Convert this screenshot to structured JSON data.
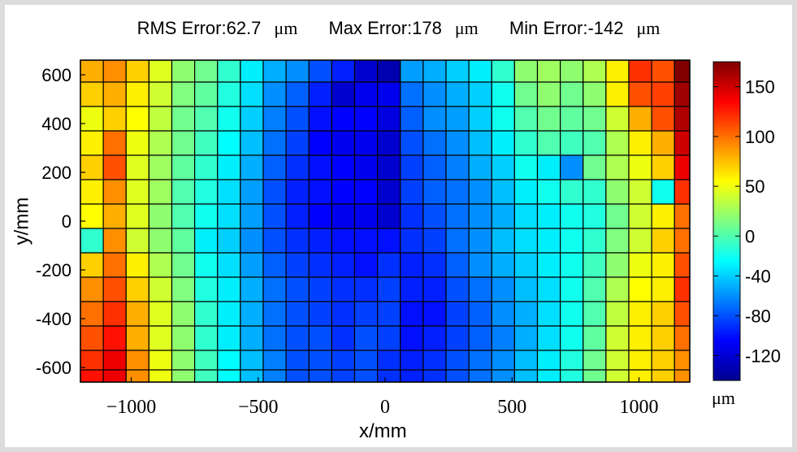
{
  "title": {
    "rms": "RMS Error:62.7",
    "max": "Max Error:178",
    "min": "Min Error:-142",
    "unit": "μm"
  },
  "chart_data": {
    "type": "heatmap",
    "xlabel": "x/mm",
    "ylabel": "y/mm",
    "colorbar_unit": "μm",
    "colormap": "jet",
    "clim": [
      -145,
      175
    ],
    "xlim": [
      -1200,
      1200
    ],
    "ylim": [
      -660,
      660
    ],
    "x_ticks": [
      -1000,
      -500,
      0,
      500,
      1000
    ],
    "x_tick_labels": [
      "−1000",
      "−500",
      "0",
      "500",
      "1000"
    ],
    "y_ticks": [
      600,
      400,
      200,
      0,
      -200,
      -400,
      -600
    ],
    "y_tick_labels": [
      "600",
      "400",
      "200",
      "0",
      "-200",
      "-400",
      "-600"
    ],
    "colorbar_ticks": [
      150,
      100,
      50,
      0,
      -40,
      -80,
      -120
    ],
    "x_centers": [
      -1155,
      -1065,
      -975,
      -885,
      -795,
      -705,
      -615,
      -525,
      -435,
      -345,
      -255,
      -165,
      -75,
      15,
      105,
      195,
      285,
      375,
      465,
      555,
      645,
      735,
      825,
      915,
      1005,
      1095,
      1185
    ],
    "y_centers": [
      620,
      520,
      420,
      320,
      220,
      120,
      20,
      -80,
      -180,
      -280,
      -380,
      -480,
      -580,
      -640
    ],
    "values": [
      [
        80,
        90,
        70,
        45,
        20,
        10,
        -10,
        -30,
        -50,
        -60,
        -80,
        -95,
        -120,
        -130,
        -55,
        -50,
        -40,
        -30,
        -10,
        20,
        25,
        20,
        30,
        60,
        120,
        110,
        175
      ],
      [
        70,
        80,
        60,
        40,
        15,
        5,
        -15,
        -35,
        -60,
        -75,
        -95,
        -120,
        -110,
        -110,
        -70,
        -60,
        -50,
        -40,
        -20,
        10,
        20,
        10,
        20,
        60,
        110,
        115,
        165
      ],
      [
        50,
        70,
        55,
        35,
        10,
        0,
        -20,
        -40,
        -65,
        -80,
        -100,
        -105,
        -105,
        -115,
        -75,
        -60,
        -55,
        -40,
        -20,
        0,
        10,
        5,
        10,
        40,
        80,
        110,
        160
      ],
      [
        60,
        100,
        50,
        30,
        10,
        -5,
        -25,
        -45,
        -70,
        -85,
        -105,
        -110,
        -110,
        -120,
        -80,
        -70,
        -60,
        -45,
        -30,
        -10,
        0,
        -5,
        0,
        30,
        60,
        80,
        150
      ],
      [
        70,
        110,
        45,
        25,
        5,
        -10,
        -30,
        -50,
        -75,
        -90,
        -100,
        -105,
        -110,
        -120,
        -85,
        -75,
        -65,
        -50,
        -40,
        -20,
        -30,
        -60,
        10,
        30,
        50,
        70,
        140
      ],
      [
        60,
        90,
        45,
        25,
        0,
        -15,
        -35,
        -55,
        -80,
        -95,
        -100,
        -105,
        -105,
        -120,
        -85,
        -75,
        -70,
        -60,
        -45,
        -30,
        -20,
        -10,
        -10,
        20,
        40,
        -20,
        120
      ],
      [
        55,
        80,
        45,
        20,
        0,
        -20,
        -35,
        -55,
        -80,
        -95,
        -105,
        -110,
        -110,
        -120,
        -90,
        -80,
        -70,
        -60,
        -50,
        -35,
        -30,
        -20,
        -15,
        10,
        40,
        60,
        100
      ],
      [
        -10,
        90,
        40,
        20,
        5,
        -30,
        -40,
        -60,
        -80,
        -90,
        -95,
        -100,
        -100,
        -100,
        -90,
        -85,
        -70,
        -60,
        -45,
        -35,
        -30,
        -20,
        -10,
        15,
        40,
        70,
        100
      ],
      [
        70,
        100,
        60,
        30,
        10,
        -20,
        -35,
        -55,
        -75,
        -85,
        -90,
        -95,
        -100,
        -90,
        -95,
        -90,
        -75,
        -60,
        -50,
        -40,
        -30,
        -20,
        -5,
        20,
        50,
        60,
        110
      ],
      [
        90,
        110,
        70,
        40,
        15,
        -15,
        -30,
        -50,
        -70,
        -80,
        -85,
        -90,
        -90,
        -85,
        -95,
        -95,
        -80,
        -70,
        -60,
        -45,
        -35,
        -20,
        0,
        30,
        55,
        60,
        120
      ],
      [
        100,
        120,
        80,
        45,
        20,
        -10,
        -30,
        -50,
        -70,
        -80,
        -85,
        -90,
        -85,
        -85,
        -100,
        -100,
        -85,
        -75,
        -60,
        -50,
        -35,
        -20,
        0,
        35,
        60,
        70,
        110
      ],
      [
        110,
        130,
        80,
        45,
        20,
        -10,
        -30,
        -50,
        -70,
        -80,
        -80,
        -90,
        -80,
        -85,
        -100,
        -95,
        -85,
        -75,
        -65,
        -50,
        -35,
        -20,
        5,
        40,
        60,
        70,
        100
      ],
      [
        120,
        140,
        90,
        50,
        20,
        -5,
        -25,
        -45,
        -65,
        -80,
        -80,
        -85,
        -80,
        -90,
        -95,
        -90,
        -80,
        -70,
        -60,
        -45,
        -30,
        -15,
        10,
        40,
        60,
        70,
        90
      ],
      [
        130,
        140,
        90,
        50,
        20,
        -5,
        -25,
        -45,
        -65,
        -80,
        -80,
        -85,
        -80,
        -90,
        -95,
        -90,
        -80,
        -70,
        -60,
        -45,
        -30,
        -15,
        10,
        40,
        60,
        70,
        90
      ]
    ]
  }
}
